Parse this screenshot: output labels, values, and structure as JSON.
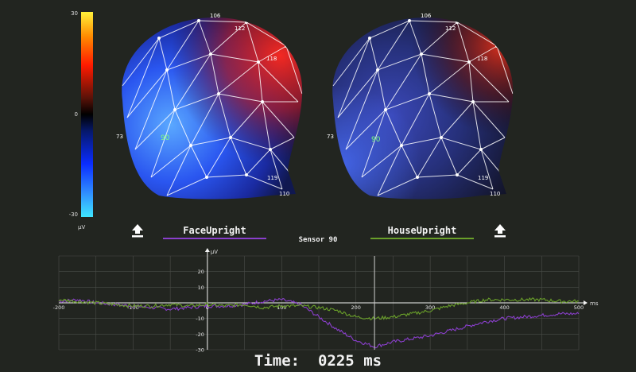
{
  "colorbar": {
    "max_label": "30",
    "mid_label": "0",
    "min_label": "-30",
    "unit": "µV",
    "colors": [
      "#fff23a",
      "#ff1a00",
      "#000000",
      "#0a2cff",
      "#3fe6ff"
    ]
  },
  "heads": [
    {
      "name": "FaceUpright",
      "electrode_labels": [
        "106",
        "112",
        "90",
        "118",
        "73",
        "110",
        "119"
      ],
      "highlight_electrode": "90"
    },
    {
      "name": "HouseUpright",
      "electrode_labels": [
        "106",
        "112",
        "90",
        "118",
        "73",
        "110",
        "119"
      ],
      "highlight_electrode": "90"
    }
  ],
  "conditions": [
    {
      "label": "FaceUpright",
      "color": "#8a3fcc"
    },
    {
      "label": "HouseUpright",
      "color": "#6aa02a"
    }
  ],
  "buttons": {
    "left_upload_icon": "upload-arrow-icon",
    "right_upload_icon": "upload-arrow-icon"
  },
  "sensor_title": "Sensor 90",
  "time_readout": "Time:  0225 ms",
  "chart_data": {
    "type": "line",
    "ylabel": "µV",
    "xlabel": "ms",
    "xlim": [
      -200,
      500
    ],
    "ylim": [
      -30,
      30
    ],
    "x_ticks": [
      "-200",
      "-100",
      "0",
      "100",
      "200",
      "300",
      "400",
      "500"
    ],
    "y_ticks": [
      "20",
      "10",
      "-10",
      "-20",
      "-30"
    ],
    "cursor_x": 225,
    "grid": true,
    "series": [
      {
        "name": "FaceUpright",
        "color": "#8a3fcc",
        "x": [
          -200,
          -175,
          -150,
          -125,
          -100,
          -75,
          -50,
          -25,
          0,
          25,
          50,
          75,
          100,
          125,
          150,
          175,
          200,
          225,
          250,
          275,
          300,
          325,
          350,
          375,
          400,
          425,
          450,
          475,
          500
        ],
        "values": [
          1,
          2,
          0,
          -1,
          -2,
          -3,
          -4,
          -3,
          -2,
          -2,
          -1,
          1,
          2,
          -1,
          -9,
          -17,
          -24,
          -28,
          -25,
          -23,
          -21,
          -18,
          -15,
          -12,
          -10,
          -9,
          -8,
          -7,
          -7
        ]
      },
      {
        "name": "HouseUpright",
        "color": "#6aa02a",
        "x": [
          -200,
          -175,
          -150,
          -125,
          -100,
          -75,
          -50,
          -25,
          0,
          25,
          50,
          75,
          100,
          125,
          150,
          175,
          200,
          225,
          250,
          275,
          300,
          325,
          350,
          375,
          400,
          425,
          450,
          475,
          500
        ],
        "values": [
          2,
          1,
          0,
          -1,
          -2,
          -2,
          -1,
          -2,
          -1,
          -2,
          -1,
          -3,
          -2,
          -2,
          -3,
          -5,
          -9,
          -10,
          -9,
          -7,
          -5,
          -2,
          0,
          2,
          2,
          2,
          2,
          1,
          1
        ]
      }
    ]
  }
}
